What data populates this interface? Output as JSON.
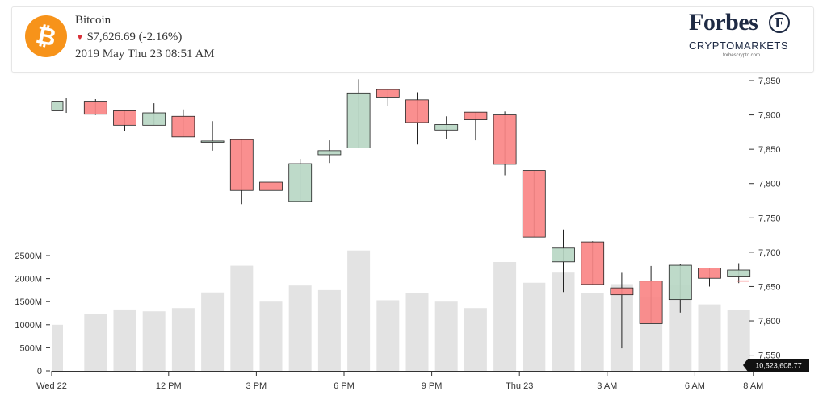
{
  "header": {
    "coin_name": "Bitcoin",
    "price": "$7,626.69",
    "change": "(-2.16%)",
    "timestamp": "2019 May Thu 23 08:51 AM",
    "brand": "Forbes",
    "brand_badge": "F",
    "brand_sub": "CRYPTOMARKETS",
    "brand_url": "forbescrypto.com"
  },
  "colors": {
    "up_fill": "#b8d7c4",
    "down_fill": "#fa8585",
    "volume_fill": "#e3e3e3",
    "accent_down": "#d9323a",
    "coin_orange": "#f7931a"
  },
  "chart_data": {
    "type": "candlestick",
    "x_ticks": [
      {
        "label": "Wed 22",
        "hour": 0
      },
      {
        "label": "12 PM",
        "hour": 4
      },
      {
        "label": "3 PM",
        "hour": 7
      },
      {
        "label": "6 PM",
        "hour": 10
      },
      {
        "label": "9 PM",
        "hour": 13
      },
      {
        "label": "Thu 23",
        "hour": 16
      },
      {
        "label": "3 AM",
        "hour": 19
      },
      {
        "label": "6 AM",
        "hour": 22
      },
      {
        "label": "8 AM",
        "hour": 24
      }
    ],
    "price_axis": {
      "ticks": [
        "7,550",
        "7,600",
        "7,650",
        "7,700",
        "7,750",
        "7,800",
        "7,850",
        "7,900",
        "7,950"
      ],
      "range": [
        7530,
        7960
      ]
    },
    "volume_axis": {
      "ticks": [
        "0",
        "500M",
        "1000M",
        "1500M",
        "2000M",
        "2500M"
      ],
      "range": [
        0,
        2500
      ]
    },
    "candles": [
      {
        "open": 7906,
        "high": 7925,
        "low": 7903,
        "close": 7920,
        "volume": 1000
      },
      {
        "open": 7920,
        "high": 7923,
        "low": 7900,
        "close": 7901,
        "volume": 1230
      },
      {
        "open": 7906,
        "high": 7906,
        "low": 7876,
        "close": 7885,
        "volume": 1330
      },
      {
        "open": 7885,
        "high": 7917,
        "low": 7885,
        "close": 7903,
        "volume": 1290
      },
      {
        "open": 7898,
        "high": 7908,
        "low": 7868,
        "close": 7868,
        "volume": 1360
      },
      {
        "open": 7862,
        "high": 7891,
        "low": 7848,
        "close": 7862,
        "volume": 1700
      },
      {
        "open": 7864,
        "high": 7864,
        "low": 7770,
        "close": 7790,
        "volume": 2280
      },
      {
        "open": 7802,
        "high": 7837,
        "low": 7788,
        "close": 7790,
        "volume": 1500
      },
      {
        "open": 7774,
        "high": 7836,
        "low": 7774,
        "close": 7829,
        "volume": 1850
      },
      {
        "open": 7842,
        "high": 7863,
        "low": 7830,
        "close": 7848,
        "volume": 1750
      },
      {
        "open": 7852,
        "high": 7952,
        "low": 7852,
        "close": 7932,
        "volume": 2610
      },
      {
        "open": 7937,
        "high": 7937,
        "low": 7913,
        "close": 7926,
        "volume": 1530
      },
      {
        "open": 7922,
        "high": 7933,
        "low": 7857,
        "close": 7889,
        "volume": 1680
      },
      {
        "open": 7878,
        "high": 7898,
        "low": 7865,
        "close": 7886,
        "volume": 1500
      },
      {
        "open": 7904,
        "high": 7904,
        "low": 7863,
        "close": 7893,
        "volume": 1360
      },
      {
        "open": 7900,
        "high": 7905,
        "low": 7812,
        "close": 7828,
        "volume": 2360
      },
      {
        "open": 7819,
        "high": 7819,
        "low": 7722,
        "close": 7722,
        "volume": 1910
      },
      {
        "open": 7686,
        "high": 7733,
        "low": 7642,
        "close": 7706,
        "volume": 2130
      },
      {
        "open": 7715,
        "high": 7716,
        "low": 7652,
        "close": 7653,
        "volume": 1680
      },
      {
        "open": 7648,
        "high": 7670,
        "low": 7560,
        "close": 7638,
        "volume": 1880
      },
      {
        "open": 7658,
        "high": 7680,
        "low": 7596,
        "close": 7596,
        "volume": 1600
      },
      {
        "open": 7631,
        "high": 7683,
        "low": 7612,
        "close": 7681,
        "volume": 1860
      },
      {
        "open": 7677,
        "high": 7677,
        "low": 7650,
        "close": 7662,
        "volume": 1440
      },
      {
        "open": 7664,
        "high": 7684,
        "low": 7655,
        "close": 7674,
        "volume": 1320
      }
    ],
    "last_price": 7658,
    "last_volume_label": "10,523,608.77",
    "grid": false
  }
}
